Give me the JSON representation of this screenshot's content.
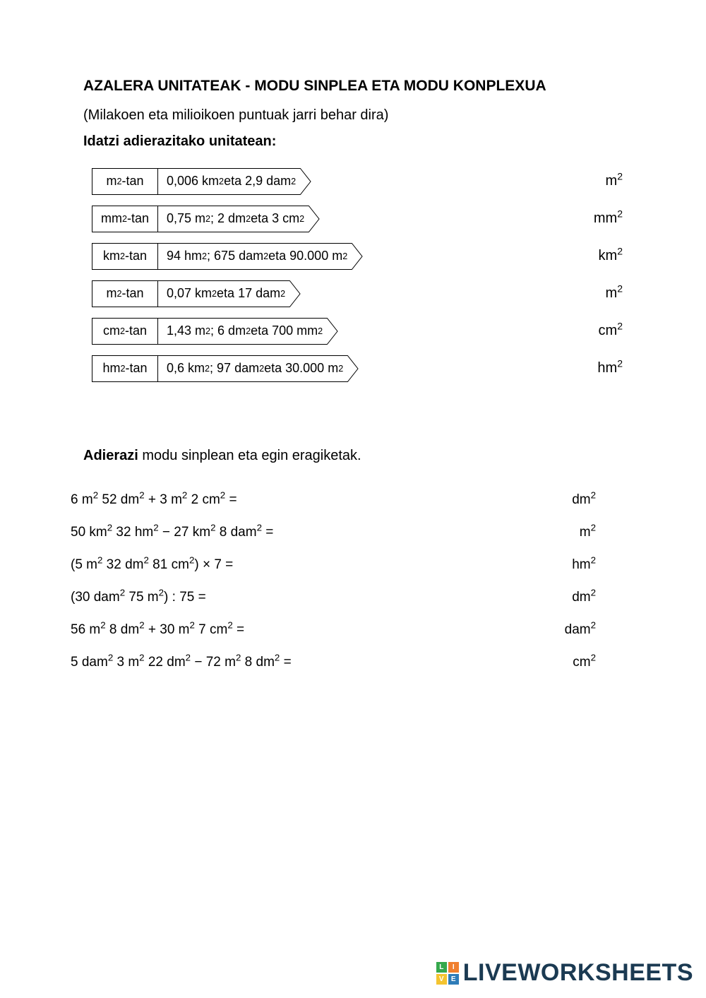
{
  "title": "AZALERA UNITATEAK - MODU SINPLEA ETA MODU KONPLEXUA",
  "subtitle": "(Milakoen eta milioikoen puntuak jarri behar dira)",
  "heading1": "Idatzi adierazitako unitatean:",
  "exercise1": [
    {
      "unit": "m²-tan",
      "expr": "0,006 km² eta 2,9 dam²",
      "result_unit": "m²"
    },
    {
      "unit": "mm²-tan",
      "expr": "0,75 m²; 2 dm² eta 3 cm²",
      "result_unit": "mm²"
    },
    {
      "unit": "km²-tan",
      "expr": "94 hm²; 675 dam² eta 90.000 m²",
      "result_unit": "km²"
    },
    {
      "unit": "m²-tan",
      "expr": "0,07 km² eta 17 dam²",
      "result_unit": "m²"
    },
    {
      "unit": "cm²-tan",
      "expr": "1,43 m²; 6 dm² eta 700 mm²",
      "result_unit": "cm²"
    },
    {
      "unit": "hm²-tan",
      "expr": "0,6 km²; 97 dam² eta 30.000 m²",
      "result_unit": "hm²"
    }
  ],
  "heading2_bold": "Adierazi",
  "heading2_rest": " modu sinplean eta egin eragiketak.",
  "exercise2": [
    {
      "expr": "6 m² 52 dm² + 3 m² 2 cm²  =",
      "unit": "dm²"
    },
    {
      "expr": "50 km² 32 hm² − 27 km² 8 dam²  =",
      "unit": "m²"
    },
    {
      "expr": "(5 m² 32 dm² 81 cm²) × 7  =",
      "unit": "hm²"
    },
    {
      "expr": "(30 dam² 75 m²) : 75  =",
      "unit": "dm²"
    },
    {
      "expr": "56 m² 8 dm² + 30 m² 7 cm² =",
      "unit": "dam²"
    },
    {
      "expr": "5 dam² 3 m² 22 dm² − 72 m² 8 dm² =",
      "unit": "cm²"
    }
  ],
  "footer": {
    "brand": "LIVEWORKSHEETS",
    "logo_colors": [
      "#35a84c",
      "#f07f2e",
      "#f4c430",
      "#2e7cb8"
    ],
    "logo_letters": [
      "L",
      "I",
      "V",
      "E"
    ]
  }
}
